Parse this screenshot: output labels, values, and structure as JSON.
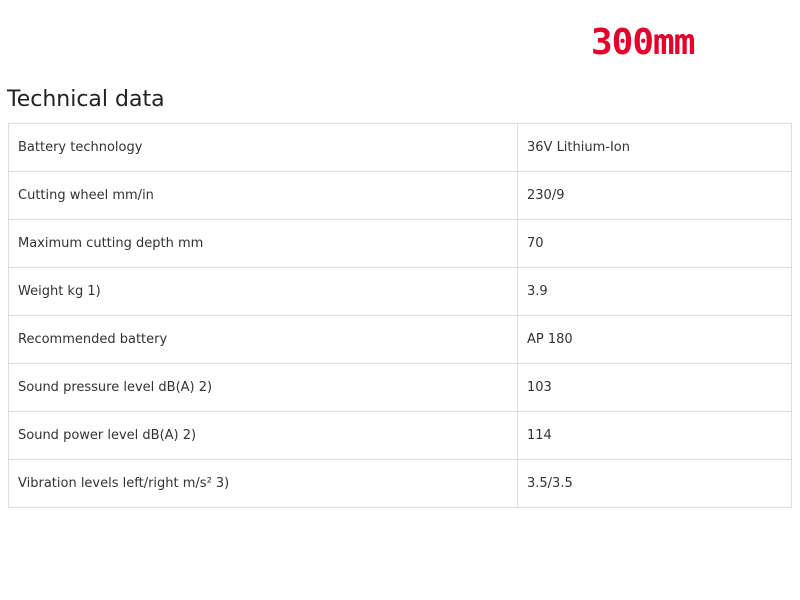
{
  "badge": "300mm",
  "header": {
    "title": "Technical data"
  },
  "table": {
    "rows": [
      [
        "Battery technology",
        "36V Lithium-Ion"
      ],
      [
        "Cutting wheel mm/in",
        "230/9"
      ],
      [
        "Maximum cutting depth mm",
        "70"
      ],
      [
        "Weight kg 1)",
        "3.9"
      ],
      [
        "Recommended battery",
        "AP 180"
      ],
      [
        "Sound pressure level dB(A) 2)",
        "103"
      ],
      [
        "Sound power level dB(A) 2)",
        "114"
      ],
      [
        "Vibration levels left/right m/s² 3)",
        "3.5/3.5"
      ]
    ]
  }
}
